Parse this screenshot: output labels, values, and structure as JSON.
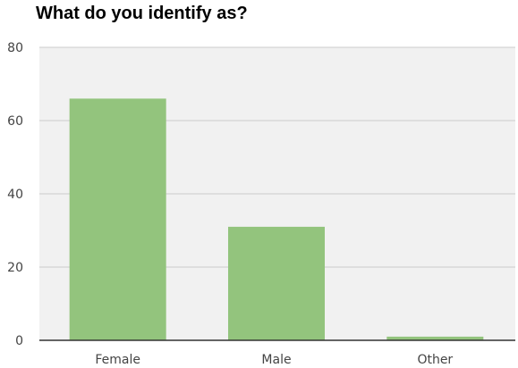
{
  "chart_data": {
    "type": "bar",
    "title": "What do you identify as?",
    "xlabel": "",
    "ylabel": "",
    "categories": [
      "Female",
      "Male",
      "Other"
    ],
    "values": [
      66,
      31,
      1
    ],
    "ylim": [
      0,
      80
    ],
    "yticks": [
      0,
      20,
      40,
      60,
      80
    ],
    "grid": true,
    "legend": "none",
    "colors": {
      "bar": "#93c47d",
      "plot_background": "#f1f1f1",
      "gridline": "#cccccc",
      "axis_line": "#333333",
      "tick_text": "#444444"
    }
  }
}
